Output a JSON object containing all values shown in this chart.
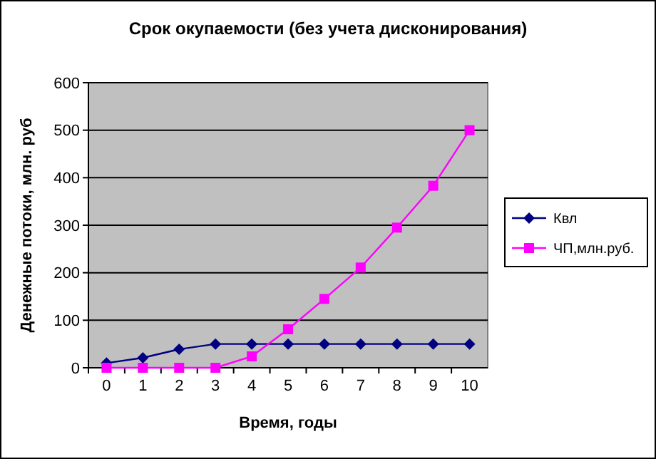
{
  "chart_data": {
    "type": "line",
    "title": "Срок окупаемости (без учета дисконирования)",
    "xlabel": "Время, годы",
    "ylabel": "Денежные потоки, млн. руб",
    "categories": [
      "0",
      "1",
      "2",
      "3",
      "4",
      "5",
      "6",
      "7",
      "8",
      "9",
      "10"
    ],
    "series": [
      {
        "name": "Квл",
        "color": "#000080",
        "marker": "diamond",
        "values": [
          10,
          21,
          39,
          50,
          50,
          50,
          50,
          50,
          50,
          50,
          50
        ]
      },
      {
        "name": "ЧП,млн.руб.",
        "color": "#ff00ff",
        "marker": "square",
        "values": [
          0,
          0,
          0,
          0,
          24,
          81,
          145,
          211,
          295,
          383,
          500
        ]
      }
    ],
    "ylim": [
      0,
      600
    ],
    "yticks": [
      0,
      100,
      200,
      300,
      400,
      500,
      600
    ],
    "grid": "y",
    "legend": "right"
  }
}
